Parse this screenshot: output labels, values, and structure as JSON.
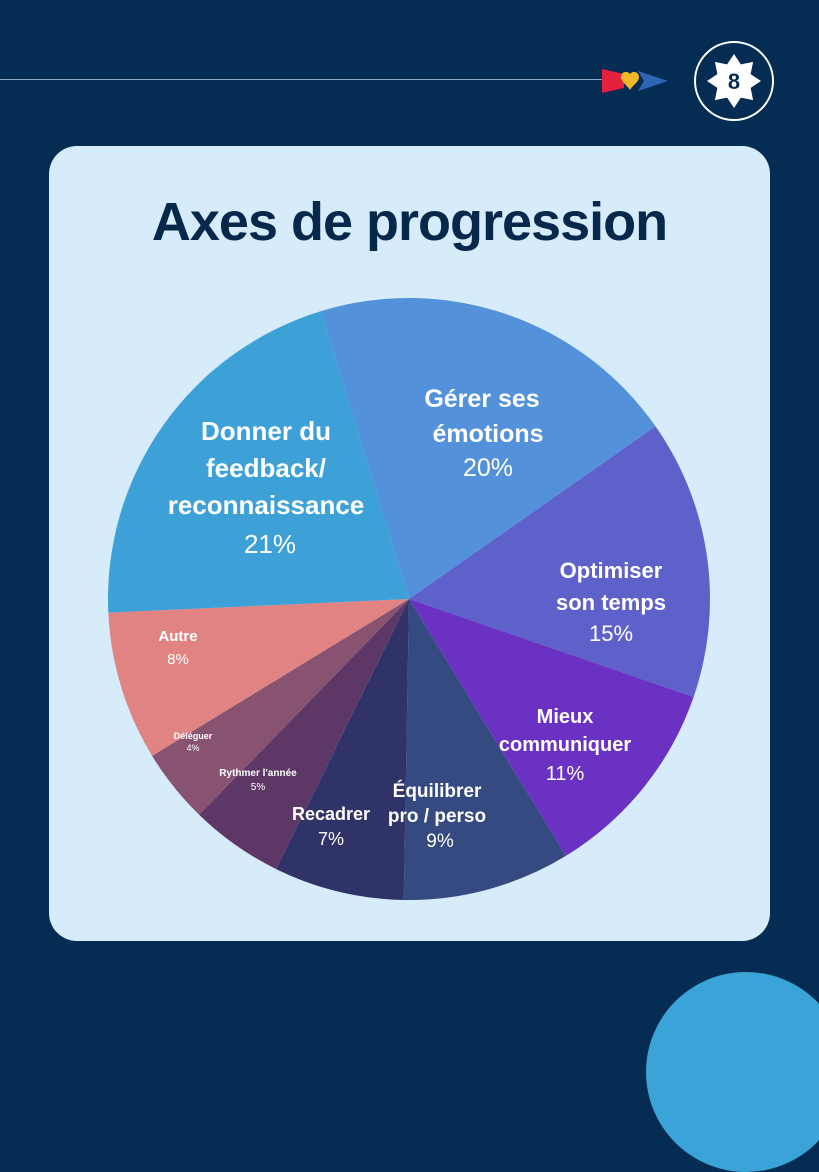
{
  "title": "Axes de progression",
  "logo_number": "8",
  "colors": {
    "background": "#052c52",
    "card": "#d6ecfb",
    "accent_circle": "#3aa3d8",
    "brand_red": "#e6213f",
    "brand_yellow": "#f2b829",
    "brand_blue": "#2e66b5"
  },
  "chart_data": {
    "type": "pie",
    "title": "Axes de progression",
    "slices": [
      {
        "label": "Gérer ses émotions",
        "value": 20,
        "value_label": "20%",
        "color": "#5391da"
      },
      {
        "label": "Optimiser son temps",
        "value": 15,
        "value_label": "15%",
        "color": "#5e61c9"
      },
      {
        "label": "Mieux communiquer",
        "value": 11,
        "value_label": "11%",
        "color": "#6a31c3"
      },
      {
        "label": "Équilibrer pro / perso",
        "value": 9,
        "value_label": "9%",
        "color": "#354a80"
      },
      {
        "label": "Recadrer",
        "value": 7,
        "value_label": "7%",
        "color": "#2f3368"
      },
      {
        "label": "Rythmer l'année",
        "value": 5,
        "value_label": "5%",
        "color": "#5d3866"
      },
      {
        "label": "Déléguer",
        "value": 4,
        "value_label": "4%",
        "color": "#875370"
      },
      {
        "label": "Autre",
        "value": 8,
        "value_label": "8%",
        "color": "#e18383"
      },
      {
        "label": "Donner du feedback/ reconnaissance",
        "value": 21,
        "value_label": "21%",
        "color": "#3da1d7"
      }
    ]
  }
}
